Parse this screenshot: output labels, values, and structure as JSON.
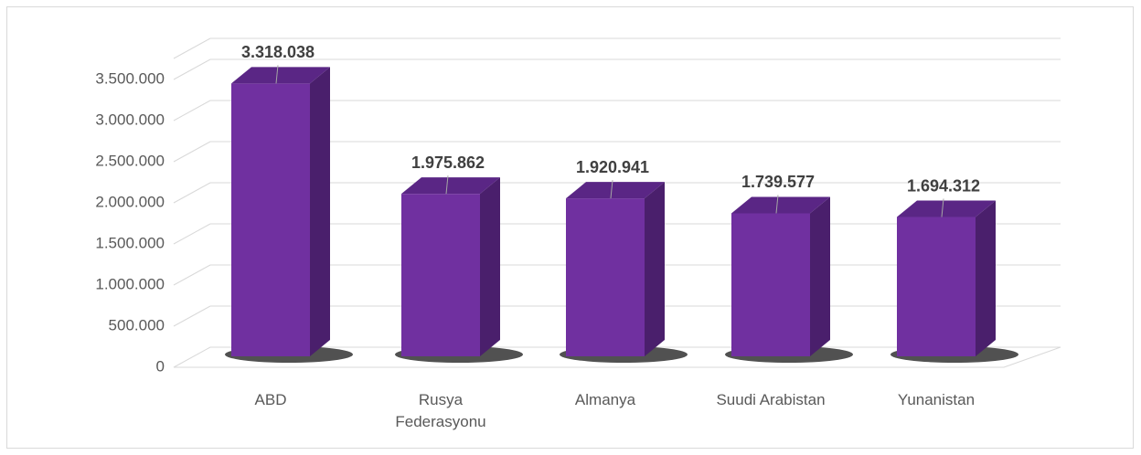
{
  "chart_data": {
    "type": "bar3d",
    "categories": [
      "ABD",
      "Rusya Federasyonu",
      "Almanya",
      "Suudi Arabistan",
      "Yunanistan"
    ],
    "values": [
      3318038,
      1975862,
      1920941,
      1739577,
      1694312
    ],
    "value_labels": [
      "3.318.038",
      "1.975.862",
      "1.920.941",
      "1.739.577",
      "1.694.312"
    ],
    "color": "#7030a0",
    "ylim": [
      0,
      4000000
    ],
    "yticks": [
      0,
      {
        "value": 500000,
        "label": "500.000"
      },
      {
        "value": 1000000,
        "label": "1.000.000"
      },
      {
        "value": 1500000,
        "label": "1.500.000"
      },
      {
        "value": 2000000,
        "label": "2.000.000"
      },
      {
        "value": 2500000,
        "label": "2.500.000"
      },
      {
        "value": 3000000,
        "label": "3.000.000"
      },
      {
        "value": 3500000,
        "label": "3.500.000"
      }
    ],
    "grid": true
  }
}
